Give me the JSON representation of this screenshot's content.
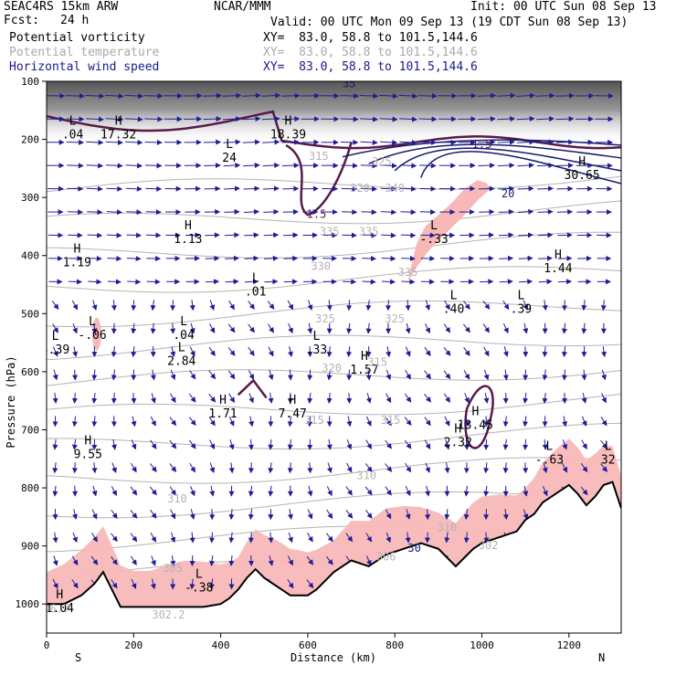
{
  "header": {
    "model": "SEAC4RS 15km ARW",
    "fcst_label": "Fcst:",
    "fcst_value": "24 h",
    "center": "NCAR/MMM",
    "init": "Init: 00 UTC Sun 08 Sep 13",
    "valid": "Valid: 00 UTC Mon 09 Sep 13 (19 CDT Sun 08 Sep 13)"
  },
  "fields": [
    {
      "name": "Potential vorticity",
      "xy": "XY=  83.0, 58.8 to 101.5,144.6",
      "color": "#000000"
    },
    {
      "name": "Potential temperature",
      "xy": "XY=  83.0, 58.8 to 101.5,144.6",
      "color": "#aaaaaa"
    },
    {
      "name": "Horizontal wind speed",
      "xy": "XY=  83.0, 58.8 to 101.5,144.6",
      "color": "#1a1a8c"
    }
  ],
  "colors": {
    "pv_fill": "#f8b8b8",
    "pv_contour": "#5a1a4a",
    "theta": "#b4b4b4",
    "wind": "#1e1e96",
    "jet_contour": "#1a1a6e",
    "terrain": "#000000"
  },
  "chart_data": {
    "type": "cross-section",
    "xlabel": "Distance (km)",
    "ylabel": "Pressure (hPa)",
    "xlim": [
      0,
      1320
    ],
    "ylim": [
      1050,
      100
    ],
    "x_ticks": [
      "0",
      "200",
      "400",
      "600",
      "800",
      "1000",
      "1200"
    ],
    "y_ticks": [
      "100",
      "200",
      "300",
      "400",
      "500",
      "600",
      "700",
      "800",
      "900",
      "1000"
    ],
    "endpoints": {
      "left": "S",
      "right": "N"
    },
    "terrain_surface": {
      "x": [
        0,
        40,
        80,
        110,
        130,
        150,
        170,
        200,
        240,
        280,
        320,
        360,
        400,
        420,
        440,
        460,
        480,
        500,
        520,
        540,
        560,
        580,
        600,
        620,
        660,
        700,
        740,
        780,
        820,
        860,
        900,
        940,
        980,
        1000,
        1040,
        1080,
        1100,
        1120,
        1140,
        1160,
        1180,
        1200,
        1220,
        1240,
        1260,
        1280,
        1300,
        1320
      ],
      "p": [
        1000,
        1000,
        985,
        965,
        945,
        975,
        1005,
        1005,
        1005,
        1005,
        1005,
        1005,
        1000,
        990,
        975,
        955,
        940,
        955,
        965,
        975,
        985,
        985,
        985,
        975,
        945,
        925,
        935,
        915,
        905,
        895,
        905,
        935,
        905,
        895,
        885,
        875,
        855,
        845,
        825,
        815,
        805,
        795,
        810,
        830,
        815,
        795,
        790,
        835
      ]
    },
    "high_low_labels": [
      {
        "kind": "L",
        "x": 60,
        "p": 175,
        "value": ".04"
      },
      {
        "kind": "H",
        "x": 165,
        "p": 175,
        "value": "17.32"
      },
      {
        "kind": "L",
        "x": 420,
        "p": 215,
        "value": "24"
      },
      {
        "kind": "H",
        "x": 555,
        "p": 175,
        "value": "18.39"
      },
      {
        "kind": "H",
        "x": 1230,
        "p": 245,
        "value": "30.65"
      },
      {
        "kind": "H",
        "x": 70,
        "p": 395,
        "value": "1.19"
      },
      {
        "kind": "H",
        "x": 325,
        "p": 355,
        "value": "1.13"
      },
      {
        "kind": "L",
        "x": 480,
        "p": 445,
        "value": ".01"
      },
      {
        "kind": "L",
        "x": 890,
        "p": 355,
        "value": "-.33"
      },
      {
        "kind": "H",
        "x": 1175,
        "p": 405,
        "value": "1.44"
      },
      {
        "kind": "L",
        "x": 935,
        "p": 475,
        "value": ".40"
      },
      {
        "kind": "L",
        "x": 1090,
        "p": 475,
        "value": ".39"
      },
      {
        "kind": "L",
        "x": 20,
        "p": 545,
        "value": "3.39"
      },
      {
        "kind": "L",
        "x": 105,
        "p": 520,
        "value": "-.06"
      },
      {
        "kind": "L",
        "x": 315,
        "p": 520,
        "value": ".04"
      },
      {
        "kind": "L",
        "x": 310,
        "p": 565,
        "value": "2.84"
      },
      {
        "kind": "L",
        "x": 620,
        "p": 545,
        "value": ".33"
      },
      {
        "kind": "H",
        "x": 730,
        "p": 580,
        "value": "1.57"
      },
      {
        "kind": "H",
        "x": 405,
        "p": 655,
        "value": "1.71"
      },
      {
        "kind": "H",
        "x": 565,
        "p": 655,
        "value": "7.47"
      },
      {
        "kind": "H",
        "x": 985,
        "p": 675,
        "value": "13.45"
      },
      {
        "kind": "H",
        "x": 945,
        "p": 705,
        "value": "2.32"
      },
      {
        "kind": "H",
        "x": 95,
        "p": 725,
        "value": "9.55"
      },
      {
        "kind": "L",
        "x": 1155,
        "p": 735,
        "value": "-.63"
      },
      {
        "kind": "L",
        "x": 1290,
        "p": 735,
        "value": "32"
      },
      {
        "kind": "L",
        "x": 350,
        "p": 955,
        "value": "-.38"
      },
      {
        "kind": "H",
        "x": 30,
        "p": 990,
        "value": "1.04"
      }
    ],
    "theta_labels": [
      {
        "x": 625,
        "p": 235,
        "value": "315"
      },
      {
        "x": 770,
        "p": 245,
        "value": "325"
      },
      {
        "x": 720,
        "p": 290,
        "value": "320"
      },
      {
        "x": 800,
        "p": 290,
        "value": "340"
      },
      {
        "x": 650,
        "p": 365,
        "value": "335"
      },
      {
        "x": 740,
        "p": 365,
        "value": "335"
      },
      {
        "x": 630,
        "p": 425,
        "value": "330"
      },
      {
        "x": 830,
        "p": 435,
        "value": "335"
      },
      {
        "x": 640,
        "p": 515,
        "value": "325"
      },
      {
        "x": 800,
        "p": 515,
        "value": "325"
      },
      {
        "x": 655,
        "p": 600,
        "value": "320"
      },
      {
        "x": 760,
        "p": 590,
        "value": "315"
      },
      {
        "x": 615,
        "p": 690,
        "value": "315"
      },
      {
        "x": 790,
        "p": 690,
        "value": "315"
      },
      {
        "x": 735,
        "p": 785,
        "value": "310"
      },
      {
        "x": 300,
        "p": 825,
        "value": "310"
      },
      {
        "x": 920,
        "p": 875,
        "value": "310"
      },
      {
        "x": 780,
        "p": 925,
        "value": "306"
      },
      {
        "x": 1015,
        "p": 905,
        "value": "302"
      },
      {
        "x": 290,
        "p": 945,
        "value": "305"
      },
      {
        "x": 280,
        "p": 1025,
        "value": "302.2"
      },
      {
        "x": 15,
        "p": 1015,
        "value": "306.7"
      }
    ],
    "pv_contour_labels": [
      {
        "x": 1000,
        "p": 215,
        "value": "1.5"
      },
      {
        "x": 620,
        "p": 335,
        "value": "1.5"
      }
    ],
    "wind_labels": [
      {
        "x": 695,
        "p": 110,
        "value": "35"
      },
      {
        "x": 1060,
        "p": 300,
        "value": "20"
      },
      {
        "x": 845,
        "p": 910,
        "value": "30"
      }
    ],
    "pv_fill_regions": [
      {
        "x": [
          830,
          850,
          880,
          920,
          960,
          990,
          1020,
          1010,
          990,
          960,
          930,
          900,
          870,
          850,
          840,
          830
        ],
        "p": [
          445,
          420,
          390,
          360,
          330,
          305,
          285,
          275,
          270,
          285,
          310,
          330,
          350,
          380,
          410,
          445
        ]
      },
      {
        "x": 870,
        "unused": 0
      }
    ]
  }
}
